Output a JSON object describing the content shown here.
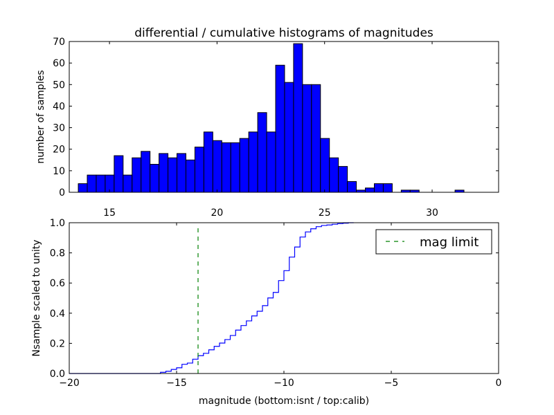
{
  "chart_data": [
    {
      "type": "bar",
      "title": "differential / cumulative histograms of magnitudes",
      "xlabel": "",
      "ylabel": "number of samples",
      "xlim": [
        13.13,
        33.09
      ],
      "ylim": [
        0,
        70
      ],
      "bin_start": 13.55,
      "bin_width": 0.417,
      "values": [
        4,
        8,
        8,
        8,
        17,
        8,
        16,
        19,
        13,
        18,
        16,
        18,
        15,
        21,
        28,
        24,
        23,
        23,
        25,
        28,
        37,
        28,
        59,
        51,
        69,
        50,
        50,
        25,
        16,
        12,
        5,
        1,
        2,
        4,
        4,
        0,
        1,
        1,
        0,
        0,
        0,
        0,
        1
      ],
      "xticks": [
        "15",
        "20",
        "25",
        "30"
      ],
      "xtick_values": [
        15,
        20,
        25,
        30
      ],
      "yticks": [
        "0",
        "10",
        "20",
        "30",
        "40",
        "50",
        "60",
        "70"
      ],
      "ytick_values": [
        0,
        10,
        20,
        30,
        40,
        50,
        60,
        70
      ],
      "bar_color": "#0000ff",
      "grid": false
    },
    {
      "type": "line",
      "xlabel": "magnitude (bottom:isnt / top:calib)",
      "ylabel": "Nsample scaled to unity",
      "xlim": [
        -20,
        0
      ],
      "ylim": [
        0,
        1
      ],
      "step_start": -15.75,
      "step_width": 0.25,
      "values": [
        0.008,
        0.015,
        0.027,
        0.038,
        0.061,
        0.069,
        0.095,
        0.118,
        0.134,
        0.157,
        0.18,
        0.202,
        0.225,
        0.252,
        0.288,
        0.318,
        0.349,
        0.382,
        0.413,
        0.45,
        0.501,
        0.538,
        0.616,
        0.682,
        0.772,
        0.839,
        0.905,
        0.939,
        0.96,
        0.974,
        0.982,
        0.985,
        0.99,
        0.994,
        0.997,
        1.0
      ],
      "line_color": "#0000ff",
      "xticks": [
        "−20",
        "−15",
        "−10",
        "−5",
        "0"
      ],
      "xtick_values": [
        -20,
        -15,
        -10,
        -5,
        0
      ],
      "yticks": [
        "0.0",
        "0.2",
        "0.4",
        "0.6",
        "0.8",
        "1.0"
      ],
      "ytick_values": [
        0,
        0.2,
        0.4,
        0.6,
        0.8,
        1.0
      ],
      "vline": {
        "x": -14,
        "color": "#008000",
        "style": "dashed"
      },
      "legend": {
        "label": "mag limit",
        "placement": "top-right"
      },
      "grid": false
    }
  ]
}
